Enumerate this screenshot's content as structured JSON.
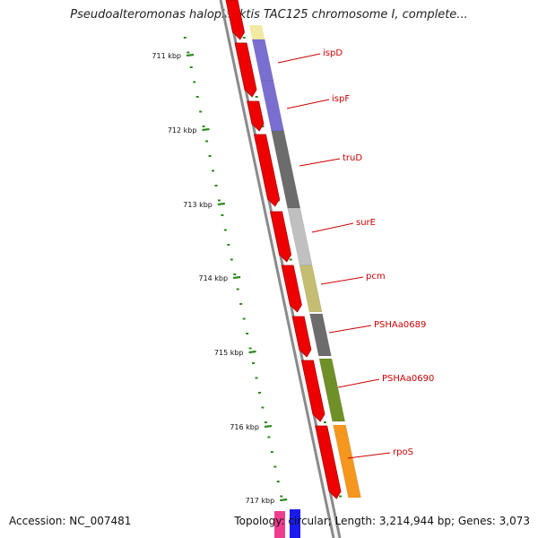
{
  "title": "Pseudoalteromonas haloplanktis TAC125 chromosome I, complete...",
  "footer": {
    "accession": "Accession: NC_007481",
    "topology": "Topology: circular; Length: 3,214,944 bp; Genes: 3,073"
  },
  "ticks": [
    {
      "label": "711 kbp"
    },
    {
      "label": "712 kbp"
    },
    {
      "label": "713 kbp"
    },
    {
      "label": "714 kbp"
    },
    {
      "label": "715 kbp"
    },
    {
      "label": "716 kbp"
    },
    {
      "label": "717 kbp"
    }
  ],
  "genes": [
    {
      "name": "ispD",
      "color": "#7a6fd0"
    },
    {
      "name": "ispF",
      "color": "#7a6fd0"
    },
    {
      "name": "truD",
      "color": "#6c6c6c"
    },
    {
      "name": "surE",
      "color": "#c0c0c0"
    },
    {
      "name": "pcm",
      "color": "#c4bd72"
    },
    {
      "name": "PSHAa0689",
      "color": "#6c6c6c"
    },
    {
      "name": "PSHAa0690",
      "color": "#6f8f28"
    },
    {
      "name": "rpoS",
      "color": "#f5961e"
    }
  ],
  "colors": {
    "backbone": "#888888",
    "cds_arrow": "#ee0000",
    "tick": "#2d8a1f",
    "label_line": "#cc0000"
  }
}
